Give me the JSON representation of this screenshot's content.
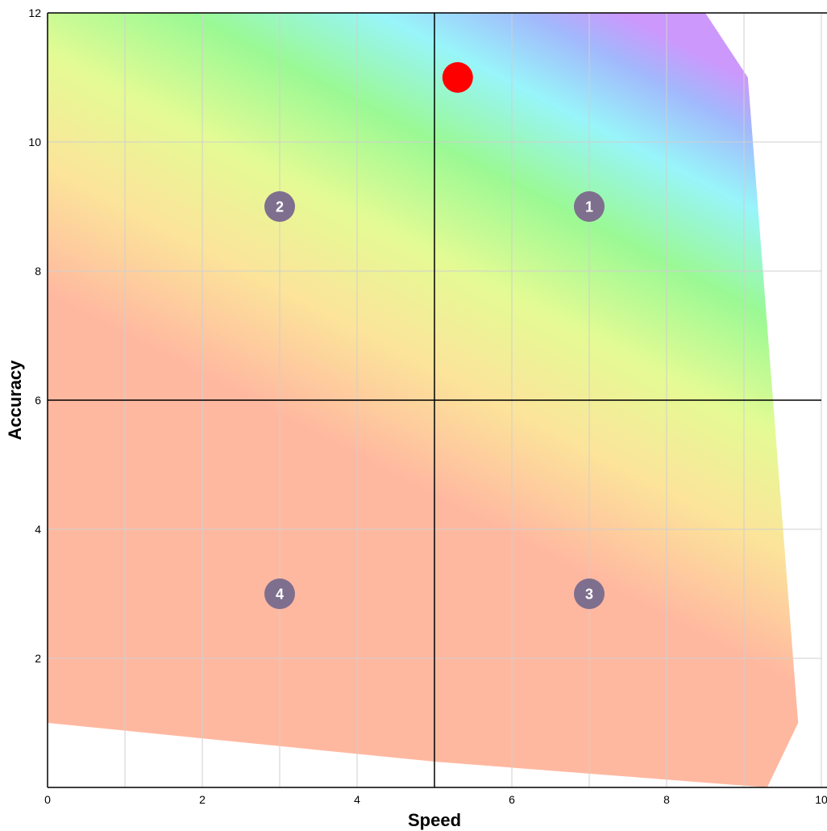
{
  "chart_data": {
    "type": "scatter",
    "title": "",
    "xlabel": "Speed",
    "ylabel": "Accuracy",
    "xlim": [
      0,
      10
    ],
    "ylim": [
      0,
      12
    ],
    "x_ticks": [
      "0",
      "2",
      "4",
      "6",
      "8",
      "10"
    ],
    "y_ticks": [
      "2",
      "4",
      "6",
      "8",
      "10",
      "12"
    ],
    "grid": true,
    "quadrant_dividers": {
      "x": 5,
      "y": 6
    },
    "background_region": {
      "polygon": [
        [
          0,
          12
        ],
        [
          8.5,
          12
        ],
        [
          9.05,
          11
        ],
        [
          9.7,
          1
        ],
        [
          9.3,
          0
        ],
        [
          5,
          0.4
        ],
        [
          0,
          1
        ]
      ],
      "gradient_colors": [
        "#ffb8a0",
        "#ffb8a0",
        "#fce49a",
        "#e4fb94",
        "#9af994",
        "#98f5fa",
        "#a2b8fc",
        "#cc98fc"
      ]
    },
    "quadrant_markers": [
      {
        "label": "1",
        "x": 7,
        "y": 9
      },
      {
        "label": "2",
        "x": 3,
        "y": 9
      },
      {
        "label": "3",
        "x": 7,
        "y": 3
      },
      {
        "label": "4",
        "x": 3,
        "y": 3
      }
    ],
    "points": [
      {
        "x": 5.3,
        "y": 11,
        "color": "#ff0000"
      }
    ],
    "colors": {
      "marker": "#7e6f8e",
      "point": "#ff0000",
      "grid": "#cfcfcf",
      "axis": "#000000"
    }
  }
}
